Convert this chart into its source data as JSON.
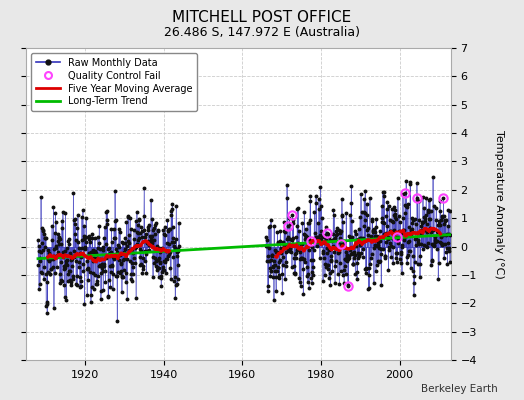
{
  "title": "MITCHELL POST OFFICE",
  "subtitle": "26.486 S, 147.972 E (Australia)",
  "credit": "Berkeley Earth",
  "ylabel": "Temperature Anomaly (°C)",
  "xlim": [
    1905,
    2013
  ],
  "ylim": [
    -4,
    7
  ],
  "yticks": [
    -4,
    -3,
    -2,
    -1,
    0,
    1,
    2,
    3,
    4,
    5,
    6,
    7
  ],
  "xticks": [
    1920,
    1940,
    1960,
    1980,
    2000
  ],
  "bg_color": "#e8e8e8",
  "plot_bg_color": "#ffffff",
  "raw_line_color": "#3333bb",
  "raw_dot_color": "#111111",
  "moving_avg_color": "#dd0000",
  "trend_color": "#00bb00",
  "qc_fail_color": "#ff44ff",
  "segment1_start": 1908,
  "segment1_end": 1943,
  "segment2_start": 1966,
  "segment2_end": 2012,
  "seed1": 12,
  "seed2": 77
}
